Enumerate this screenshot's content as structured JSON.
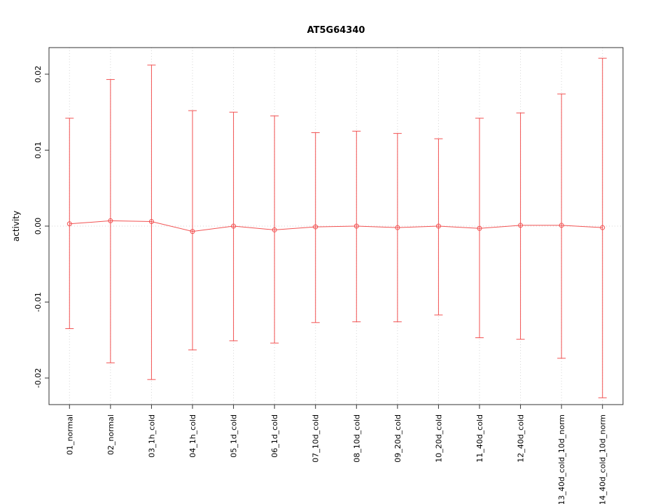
{
  "chart_data": {
    "type": "scatter",
    "subtype": "errorbar",
    "title": "AT5G64340",
    "xlabel": "",
    "ylabel": "activity",
    "ylim": [
      -0.0235,
      0.0235
    ],
    "yticks": [
      -0.02,
      -0.01,
      0.0,
      0.01,
      0.02
    ],
    "ytick_labels": [
      "-0.02",
      "-0.01",
      "0.00",
      "0.01",
      "0.02"
    ],
    "grid": "dotted vertical gridlines at each category; dotted horizontal line at y=0",
    "legend_position": "none",
    "series_color": "#f25252",
    "grid_color": "#d6d6d6",
    "box_color": "#333333",
    "categories": [
      "01_normal",
      "02_normal",
      "03_1h_cold",
      "04_1h_cold",
      "05_1d_cold",
      "06_1d_cold",
      "07_10d_cold",
      "08_10d_cold",
      "09_20d_cold",
      "10_20d_cold",
      "11_40d_cold",
      "12_40d_cold",
      "13_40d_cold_10d_norm",
      "14_40d_cold_10d_norm"
    ],
    "series": [
      {
        "name": "activity",
        "means": [
          0.0003,
          0.0007,
          0.0006,
          -0.0007,
          0.0,
          -0.0005,
          -0.0001,
          0.0,
          -0.0002,
          0.0,
          -0.0003,
          0.0001,
          0.0001,
          -0.0002
        ],
        "upper": [
          0.0142,
          0.0193,
          0.0212,
          0.0152,
          0.015,
          0.0145,
          0.0123,
          0.0125,
          0.0122,
          0.0115,
          0.0142,
          0.0149,
          0.0174,
          0.0221
        ],
        "lower": [
          -0.0135,
          -0.018,
          -0.0202,
          -0.0163,
          -0.0151,
          -0.0154,
          -0.0127,
          -0.0126,
          -0.0126,
          -0.0117,
          -0.0147,
          -0.0149,
          -0.0174,
          -0.0226
        ]
      }
    ]
  }
}
